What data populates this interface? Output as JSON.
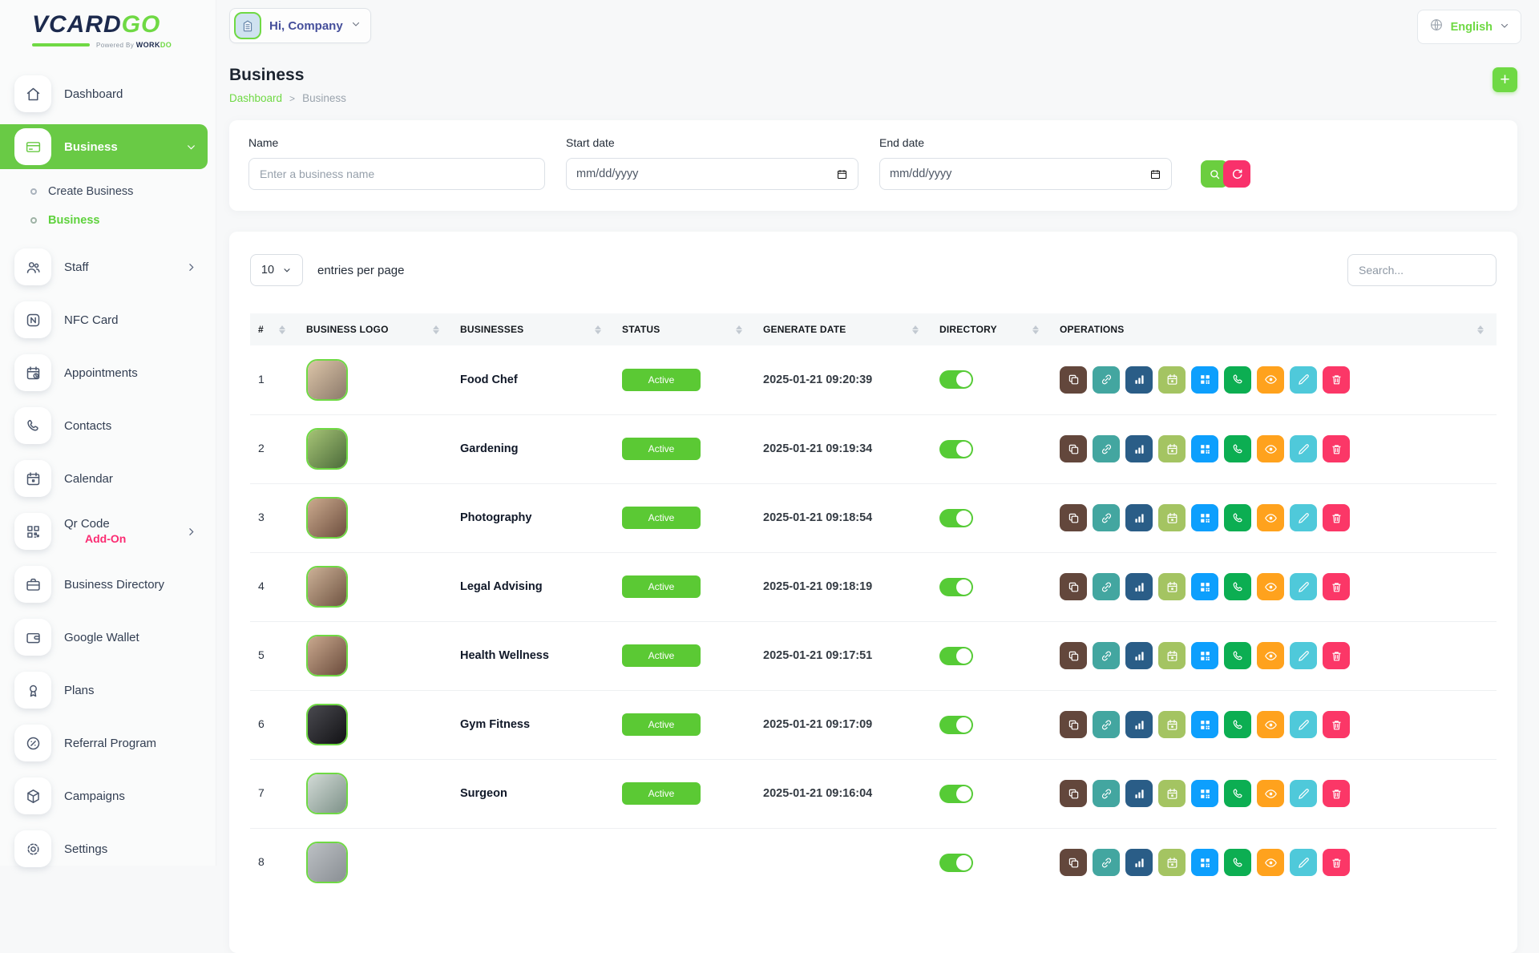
{
  "brand": {
    "name_primary": "VCARD",
    "name_accent": "GO",
    "powered_by": "Powered By",
    "powered_brand_primary": "WORK",
    "powered_brand_accent": "DO"
  },
  "header": {
    "greeting": "Hi, Company",
    "language": "English"
  },
  "sidebar": {
    "items": [
      {
        "label": "Dashboard",
        "icon": "home-icon",
        "active": false
      },
      {
        "label": "Business",
        "icon": "credit-card-icon",
        "active": true,
        "chevron": "down",
        "children": [
          {
            "label": "Create Business",
            "active": false
          },
          {
            "label": "Business",
            "active": true
          }
        ]
      },
      {
        "label": "Staff",
        "icon": "users-icon",
        "chevron": "right"
      },
      {
        "label": "NFC Card",
        "icon": "nfc-icon"
      },
      {
        "label": "Appointments",
        "icon": "calendar-clock-icon"
      },
      {
        "label": "Contacts",
        "icon": "phone-icon"
      },
      {
        "label": "Calendar",
        "icon": "calendar-icon"
      },
      {
        "label": "Qr Code",
        "badge": "Add-On",
        "icon": "qr-code-icon",
        "chevron": "right"
      },
      {
        "label": "Business Directory",
        "icon": "briefcase-icon"
      },
      {
        "label": "Google Wallet",
        "icon": "wallet-icon"
      },
      {
        "label": "Plans",
        "icon": "award-icon"
      },
      {
        "label": "Referral Program",
        "icon": "percent-badge-icon"
      },
      {
        "label": "Campaigns",
        "icon": "package-icon"
      },
      {
        "label": "Settings",
        "icon": "gear-icon"
      }
    ]
  },
  "page": {
    "title": "Business",
    "breadcrumb": [
      "Dashboard",
      "Business"
    ],
    "breadcrumb_separator": ">",
    "add_button": "+"
  },
  "filters": {
    "name_label": "Name",
    "name_placeholder": "Enter a business name",
    "start_label": "Start date",
    "end_label": "End date",
    "date_placeholder": "mm/dd/yyyy"
  },
  "table": {
    "entries_value": "10",
    "entries_label": "entries per page",
    "search_placeholder": "Search...",
    "columns": [
      "#",
      "BUSINESS LOGO",
      "BUSINESSES",
      "STATUS",
      "GENERATE DATE",
      "DIRECTORY",
      "OPERATIONS"
    ],
    "rows": [
      {
        "index": "1",
        "name": "Food Chef",
        "status": "Active",
        "date": "2025-01-21 09:20:39",
        "directory_on": true,
        "logo_colors": [
          "#dcc5a8",
          "#8c7a6b"
        ]
      },
      {
        "index": "2",
        "name": "Gardening",
        "status": "Active",
        "date": "2025-01-21 09:19:34",
        "directory_on": true,
        "logo_colors": [
          "#a6c476",
          "#4c6b3a"
        ]
      },
      {
        "index": "3",
        "name": "Photography",
        "status": "Active",
        "date": "2025-01-21 09:18:54",
        "directory_on": true,
        "logo_colors": [
          "#cbaa8e",
          "#6e4f3f"
        ]
      },
      {
        "index": "4",
        "name": "Legal Advising",
        "status": "Active",
        "date": "2025-01-21 09:18:19",
        "directory_on": true,
        "logo_colors": [
          "#ccb197",
          "#705442"
        ]
      },
      {
        "index": "5",
        "name": "Health Wellness",
        "status": "Active",
        "date": "2025-01-21 09:17:51",
        "directory_on": true,
        "logo_colors": [
          "#c9a88e",
          "#6b4c3c"
        ]
      },
      {
        "index": "6",
        "name": "Gym Fitness",
        "status": "Active",
        "date": "2025-01-21 09:17:09",
        "directory_on": true,
        "logo_colors": [
          "#4a4a50",
          "#121215"
        ]
      },
      {
        "index": "7",
        "name": "Surgeon",
        "status": "Active",
        "date": "2025-01-21 09:16:04",
        "directory_on": true,
        "logo_colors": [
          "#d2dad6",
          "#7e9289"
        ]
      },
      {
        "index": "8",
        "name": "",
        "status": "",
        "date": "",
        "directory_on": true,
        "partial": true,
        "logo_colors": [
          "#bcc0c4",
          "#8a8f94"
        ]
      }
    ],
    "operations": [
      {
        "name": "copy",
        "icon": "copy-icon",
        "color": "#63473c"
      },
      {
        "name": "link",
        "icon": "link-icon",
        "color": "#43a6a0"
      },
      {
        "name": "analytics",
        "icon": "bar-chart-icon",
        "color": "#2a5d87"
      },
      {
        "name": "appointment",
        "icon": "calendar-icon",
        "color": "#a4c462"
      },
      {
        "name": "qr",
        "icon": "qr-code-icon",
        "color": "#0d9ffd"
      },
      {
        "name": "call",
        "icon": "phone-icon",
        "color": "#0cae52"
      },
      {
        "name": "view",
        "icon": "eye-icon",
        "color": "#ffa21d"
      },
      {
        "name": "edit",
        "icon": "pencil-icon",
        "color": "#4fc9da"
      },
      {
        "name": "delete",
        "icon": "trash-icon",
        "color": "#fb3767"
      }
    ]
  },
  "colors": {
    "brand_green": "#6fd944",
    "active_item_green": "#69ca45",
    "badge_green": "#5bc934",
    "reset_pink": "#f9316b",
    "addon_pink": "#fb2b72"
  }
}
